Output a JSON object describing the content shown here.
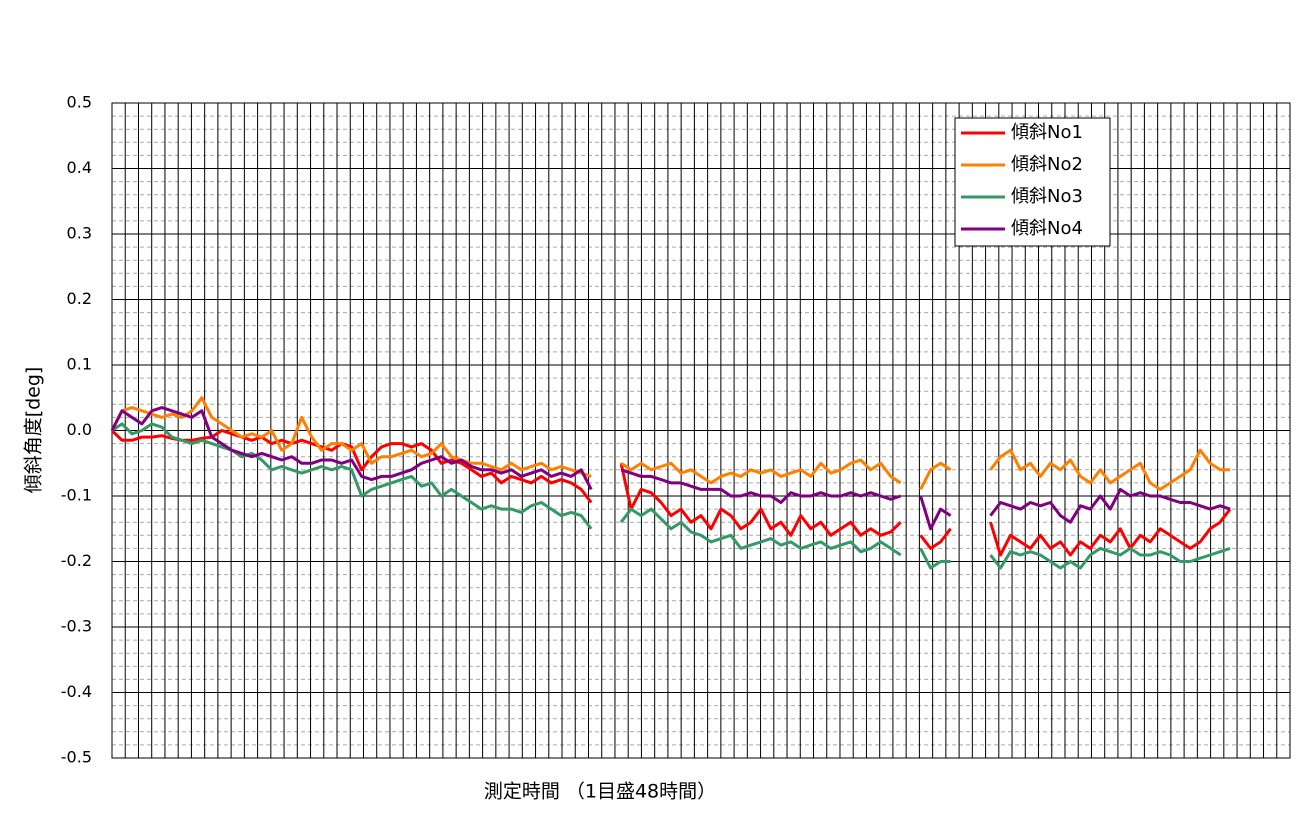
{
  "chart_data": {
    "type": "line",
    "y_label": "傾斜角度[deg]",
    "x_label": "測定時間 （1目盛48時間）",
    "ylim": [
      -0.5,
      0.5
    ],
    "yticks": [
      -0.5,
      -0.4,
      -0.3,
      -0.2,
      -0.1,
      {
        "value": 0,
        "label": "0.0"
      },
      0.1,
      0.2,
      0.3,
      0.4,
      0.5
    ],
    "y_minor_step": 0.02,
    "xlim": [
      0,
      118
    ],
    "x_grid_divisions": 89,
    "grid": true,
    "legend": "top-right",
    "x": [
      0,
      1,
      2,
      3,
      4,
      5,
      6,
      7,
      8,
      9,
      10,
      11,
      12,
      13,
      14,
      15,
      16,
      17,
      18,
      19,
      20,
      21,
      22,
      23,
      24,
      25,
      26,
      27,
      28,
      29,
      30,
      31,
      32,
      33,
      34,
      35,
      36,
      37,
      38,
      39,
      40,
      41,
      42,
      43,
      44,
      45,
      46,
      47,
      48,
      49,
      50,
      51,
      52,
      53,
      54,
      55,
      56,
      57,
      58,
      59,
      60,
      61,
      62,
      63,
      64,
      65,
      66,
      67,
      68,
      69,
      70,
      71,
      72,
      73,
      74,
      75,
      76,
      77,
      78,
      79,
      80,
      81,
      82,
      83,
      84,
      85,
      86,
      87,
      88,
      89,
      90,
      91,
      92,
      93,
      94,
      95,
      96,
      97,
      98,
      99,
      100,
      101,
      102,
      103,
      104,
      105,
      106,
      107,
      108,
      109,
      110,
      111,
      112
    ],
    "series": [
      {
        "name": "傾斜No1",
        "color": "#ff0000",
        "values": [
          0,
          -0.015,
          -0.015,
          -0.01,
          -0.01,
          -0.008,
          -0.012,
          -0.015,
          -0.015,
          -0.012,
          -0.01,
          0.0,
          -0.005,
          -0.01,
          -0.015,
          -0.01,
          -0.02,
          -0.015,
          -0.02,
          -0.015,
          -0.02,
          -0.025,
          -0.03,
          -0.02,
          -0.025,
          -0.06,
          -0.04,
          -0.025,
          -0.02,
          -0.02,
          -0.025,
          -0.02,
          -0.03,
          -0.05,
          -0.045,
          -0.05,
          -0.06,
          -0.07,
          -0.065,
          -0.08,
          -0.07,
          -0.075,
          -0.08,
          -0.07,
          -0.08,
          -0.075,
          -0.08,
          -0.09,
          -0.11,
          null,
          null,
          -0.05,
          -0.12,
          -0.09,
          -0.095,
          -0.11,
          -0.13,
          -0.12,
          -0.14,
          -0.13,
          -0.15,
          -0.12,
          -0.13,
          -0.15,
          -0.14,
          -0.12,
          -0.15,
          -0.14,
          -0.16,
          -0.13,
          -0.15,
          -0.14,
          -0.16,
          -0.15,
          -0.14,
          -0.16,
          -0.15,
          -0.16,
          -0.155,
          -0.14,
          null,
          -0.16,
          -0.18,
          -0.17,
          -0.15,
          null,
          null,
          null,
          -0.14,
          -0.19,
          -0.16,
          -0.17,
          -0.18,
          -0.16,
          -0.18,
          -0.17,
          -0.19,
          -0.17,
          -0.18,
          -0.16,
          -0.17,
          -0.15,
          -0.18,
          -0.16,
          -0.17,
          -0.15,
          -0.16,
          -0.17,
          -0.18,
          -0.17,
          -0.15,
          -0.14,
          -0.12
        ]
      },
      {
        "name": "傾斜No2",
        "color": "#ff8000",
        "values": [
          0,
          0.03,
          0.035,
          0.03,
          0.025,
          0.02,
          0.025,
          0.02,
          0.03,
          0.05,
          0.02,
          0.01,
          0.0,
          -0.01,
          -0.005,
          -0.01,
          0.0,
          -0.03,
          -0.02,
          0.02,
          -0.01,
          -0.03,
          -0.02,
          -0.02,
          -0.03,
          -0.02,
          -0.05,
          -0.04,
          -0.04,
          -0.035,
          -0.03,
          -0.04,
          -0.035,
          -0.02,
          -0.04,
          -0.045,
          -0.05,
          -0.05,
          -0.055,
          -0.06,
          -0.05,
          -0.06,
          -0.055,
          -0.05,
          -0.06,
          -0.055,
          -0.06,
          -0.065,
          -0.07,
          null,
          null,
          -0.05,
          -0.06,
          -0.05,
          -0.06,
          -0.055,
          -0.05,
          -0.065,
          -0.06,
          -0.07,
          -0.08,
          -0.07,
          -0.065,
          -0.07,
          -0.06,
          -0.065,
          -0.06,
          -0.07,
          -0.065,
          -0.06,
          -0.07,
          -0.05,
          -0.065,
          -0.06,
          -0.05,
          -0.045,
          -0.06,
          -0.05,
          -0.07,
          -0.08,
          null,
          -0.09,
          -0.06,
          -0.05,
          -0.06,
          null,
          null,
          null,
          -0.06,
          -0.04,
          -0.03,
          -0.06,
          -0.05,
          -0.07,
          -0.05,
          -0.06,
          -0.045,
          -0.07,
          -0.08,
          -0.06,
          -0.08,
          -0.07,
          -0.06,
          -0.05,
          -0.08,
          -0.09,
          -0.08,
          -0.07,
          -0.06,
          -0.03,
          -0.05,
          -0.06,
          -0.06
        ]
      },
      {
        "name": "傾斜No3",
        "color": "#339966",
        "values": [
          0,
          0.01,
          -0.005,
          0.0,
          0.01,
          0.005,
          -0.01,
          -0.015,
          -0.02,
          -0.015,
          -0.02,
          -0.025,
          -0.03,
          -0.04,
          -0.035,
          -0.045,
          -0.06,
          -0.055,
          -0.06,
          -0.065,
          -0.06,
          -0.055,
          -0.06,
          -0.055,
          -0.06,
          -0.1,
          -0.09,
          -0.085,
          -0.08,
          -0.075,
          -0.07,
          -0.085,
          -0.08,
          -0.1,
          -0.09,
          -0.1,
          -0.11,
          -0.12,
          -0.115,
          -0.12,
          -0.12,
          -0.125,
          -0.115,
          -0.11,
          -0.12,
          -0.13,
          -0.125,
          -0.13,
          -0.15,
          null,
          null,
          -0.14,
          -0.12,
          -0.13,
          -0.12,
          -0.135,
          -0.15,
          -0.14,
          -0.155,
          -0.16,
          -0.17,
          -0.165,
          -0.16,
          -0.18,
          -0.175,
          -0.17,
          -0.165,
          -0.175,
          -0.17,
          -0.18,
          -0.175,
          -0.17,
          -0.18,
          -0.175,
          -0.17,
          -0.185,
          -0.18,
          -0.17,
          -0.18,
          -0.19,
          null,
          -0.18,
          -0.21,
          -0.2,
          -0.2,
          null,
          null,
          null,
          -0.19,
          -0.21,
          -0.185,
          -0.19,
          -0.185,
          -0.19,
          -0.2,
          -0.21,
          -0.2,
          -0.21,
          -0.19,
          -0.18,
          -0.185,
          -0.19,
          -0.18,
          -0.19,
          -0.19,
          -0.185,
          -0.19,
          -0.2,
          -0.2,
          -0.195,
          -0.19,
          -0.185,
          -0.18
        ]
      },
      {
        "name": "傾斜No4",
        "color": "#800080",
        "values": [
          0,
          0.03,
          0.02,
          0.01,
          0.03,
          0.035,
          0.03,
          0.025,
          0.02,
          0.03,
          -0.01,
          -0.02,
          -0.03,
          -0.035,
          -0.04,
          -0.035,
          -0.04,
          -0.045,
          -0.04,
          -0.05,
          -0.05,
          -0.045,
          -0.045,
          -0.05,
          -0.045,
          -0.07,
          -0.075,
          -0.07,
          -0.07,
          -0.065,
          -0.06,
          -0.05,
          -0.045,
          -0.04,
          -0.05,
          -0.045,
          -0.055,
          -0.06,
          -0.06,
          -0.065,
          -0.06,
          -0.07,
          -0.065,
          -0.06,
          -0.07,
          -0.065,
          -0.07,
          -0.06,
          -0.09,
          null,
          null,
          -0.06,
          -0.065,
          -0.07,
          -0.07,
          -0.075,
          -0.08,
          -0.08,
          -0.085,
          -0.09,
          -0.09,
          -0.09,
          -0.1,
          -0.1,
          -0.095,
          -0.1,
          -0.1,
          -0.11,
          -0.095,
          -0.1,
          -0.1,
          -0.095,
          -0.1,
          -0.1,
          -0.095,
          -0.1,
          -0.095,
          -0.1,
          -0.105,
          -0.1,
          null,
          -0.1,
          -0.15,
          -0.12,
          -0.13,
          null,
          null,
          null,
          -0.13,
          -0.11,
          -0.115,
          -0.12,
          -0.11,
          -0.115,
          -0.11,
          -0.13,
          -0.14,
          -0.115,
          -0.12,
          -0.1,
          -0.12,
          -0.09,
          -0.1,
          -0.095,
          -0.1,
          -0.1,
          -0.105,
          -0.11,
          -0.11,
          -0.115,
          -0.12,
          -0.115,
          -0.12
        ]
      }
    ]
  }
}
